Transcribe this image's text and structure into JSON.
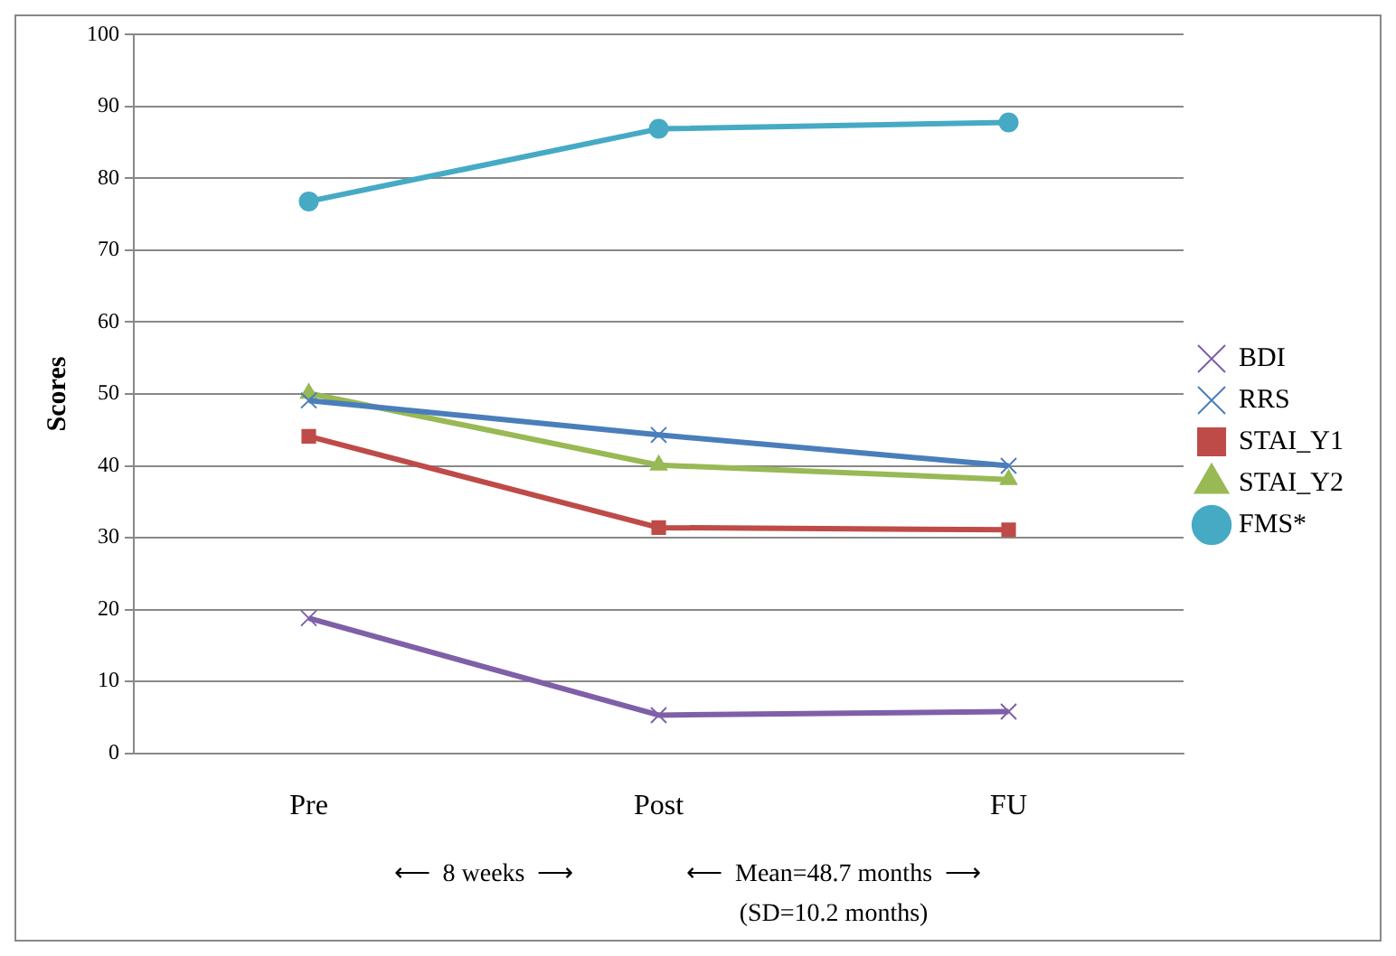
{
  "chart_data": {
    "type": "line",
    "ylabel": "Scores",
    "categories": [
      "Pre",
      "Post",
      "FU"
    ],
    "series": [
      {
        "name": "BDI",
        "color": "#7f5fa8",
        "values": [
          18.8,
          5.3,
          5.8
        ],
        "marker": "cross"
      },
      {
        "name": "RRS",
        "color": "#4a7ebb",
        "values": [
          49.1,
          44.3,
          40.0
        ],
        "marker": "cross"
      },
      {
        "name": "STAI_Y1",
        "color": "#be4b48",
        "values": [
          44.1,
          31.4,
          31.1
        ],
        "marker": "square"
      },
      {
        "name": "STAI_Y2",
        "color": "#98b954",
        "values": [
          50.1,
          40.1,
          38.1
        ],
        "marker": "triangle"
      },
      {
        "name": "FMS*",
        "color": "#46aac5",
        "values": [
          76.8,
          86.9,
          87.8
        ],
        "marker": "circle"
      }
    ],
    "ylim": [
      0,
      100
    ],
    "yticks": [
      0,
      10,
      20,
      30,
      40,
      50,
      60,
      70,
      80,
      90,
      100
    ],
    "grid": "y",
    "legend": "right",
    "line_style": "solid",
    "annotations": [
      "⟵  8 weeks  ⟶",
      "⟵  Mean=48.7 months  ⟶",
      "(SD=10.2 months)"
    ]
  }
}
